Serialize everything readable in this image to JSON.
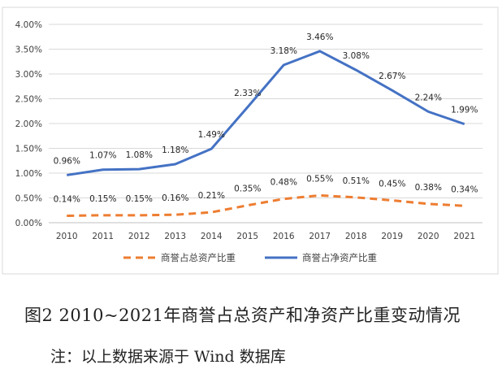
{
  "chart_data": {
    "type": "line",
    "categories": [
      "2010",
      "2011",
      "2012",
      "2013",
      "2014",
      "2015",
      "2016",
      "2017",
      "2018",
      "2019",
      "2020",
      "2021"
    ],
    "y_ticks": [
      "0.00%",
      "0.50%",
      "1.00%",
      "1.50%",
      "2.00%",
      "2.50%",
      "3.00%",
      "3.50%",
      "4.00%"
    ],
    "ylim": [
      0,
      4.0
    ],
    "grid": true,
    "legend_position": "bottom",
    "series": [
      {
        "name": "商誉占总资产比重",
        "style": "dashed",
        "color": "#ED7D31",
        "values": [
          0.14,
          0.15,
          0.15,
          0.16,
          0.21,
          0.35,
          0.48,
          0.55,
          0.51,
          0.45,
          0.38,
          0.34
        ],
        "labels": [
          "0.14%",
          "0.15%",
          "0.15%",
          "0.16%",
          "0.21%",
          "0.35%",
          "0.48%",
          "0.55%",
          "0.51%",
          "0.45%",
          "0.38%",
          "0.34%"
        ]
      },
      {
        "name": "商誉占净资产比重",
        "style": "solid",
        "color": "#4472C4",
        "values": [
          0.96,
          1.07,
          1.08,
          1.18,
          1.49,
          2.33,
          3.18,
          3.46,
          3.08,
          2.67,
          2.24,
          1.99
        ],
        "labels": [
          "0.96%",
          "1.07%",
          "1.08%",
          "1.18%",
          "1.49%",
          "2.33%",
          "3.18%",
          "3.46%",
          "3.08%",
          "2.67%",
          "2.24%",
          "1.99%"
        ]
      }
    ]
  },
  "caption": "图2   2010~2021年商誉占总资产和净资产比重变动情况",
  "note": "注：以上数据来源于 Wind 数据库"
}
